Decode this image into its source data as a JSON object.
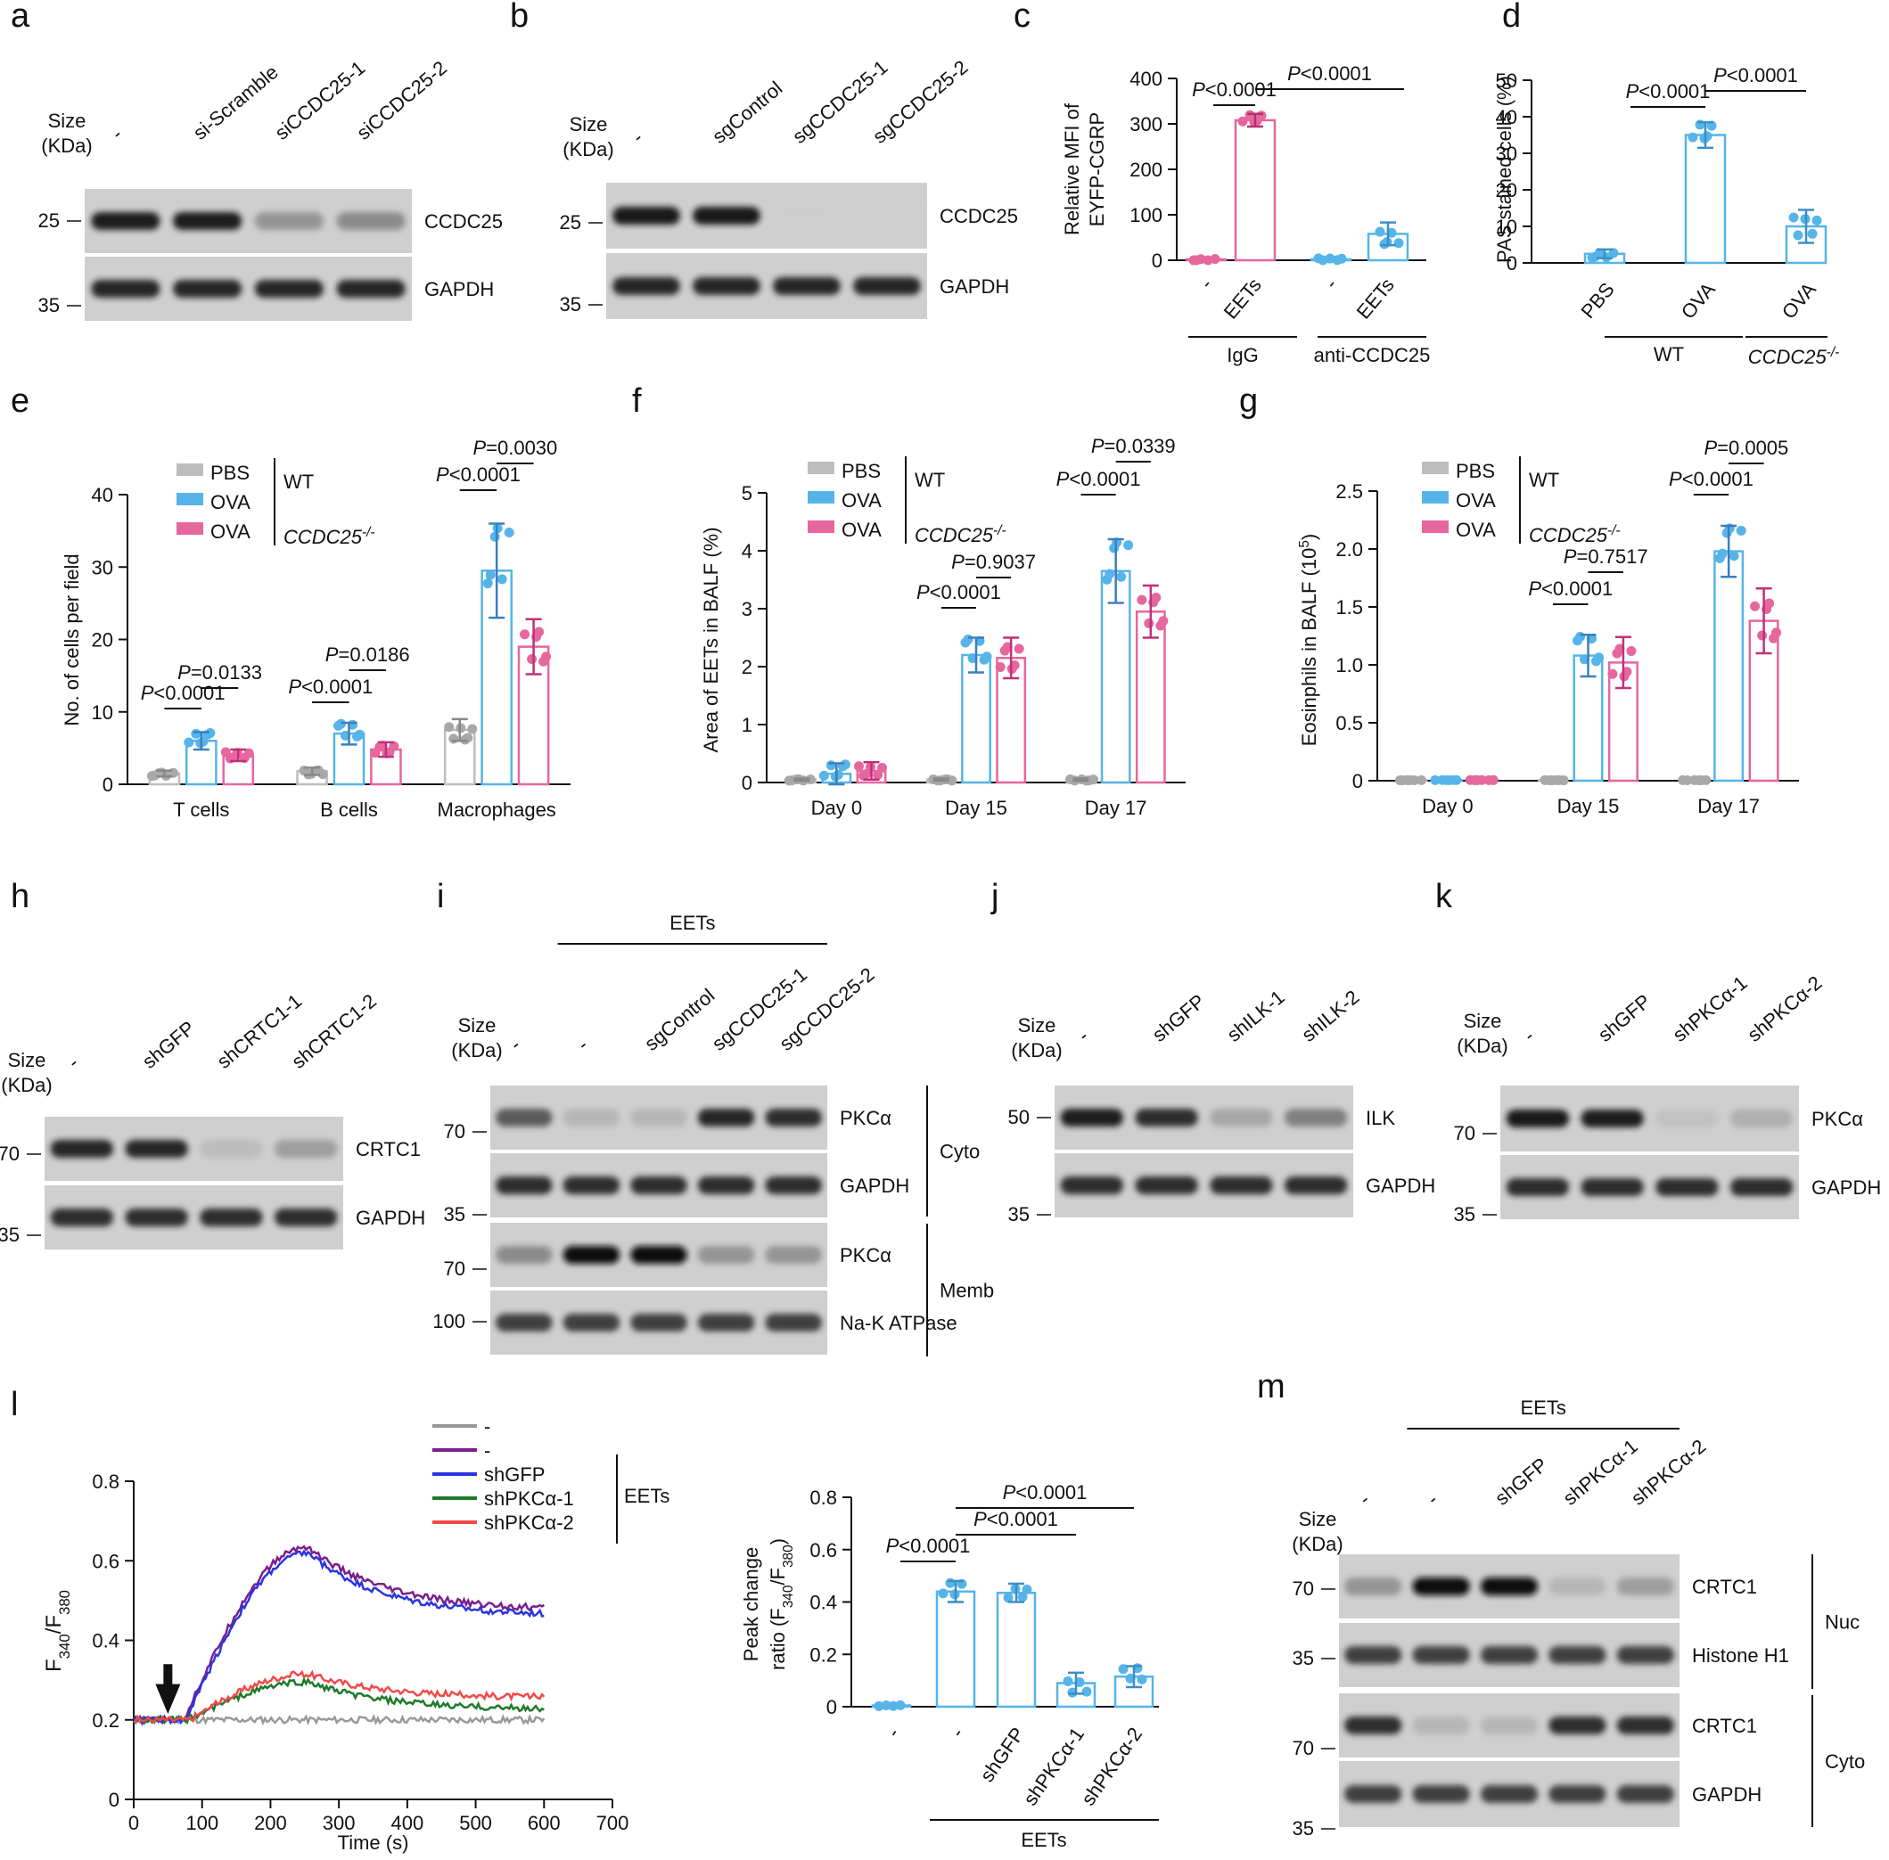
{
  "panel_letters": [
    "a",
    "b",
    "c",
    "d",
    "e",
    "f",
    "g",
    "h",
    "i",
    "j",
    "k",
    "l",
    "m"
  ],
  "blots": {
    "a": {
      "lanes": [
        "-",
        "si-Scramble",
        "siCCDC25-1",
        "siCCDC25-2"
      ],
      "size_title": [
        "Size",
        "(KDa)"
      ],
      "markers": [
        "25",
        "35"
      ],
      "bands": [
        "CCDC25",
        "GAPDH"
      ],
      "intensity": [
        [
          0.95,
          0.95,
          0.5,
          0.55
        ],
        [
          0.92,
          0.92,
          0.92,
          0.92
        ]
      ]
    },
    "b": {
      "lanes": [
        "-",
        "sgControl",
        "sgCCDC25-1",
        "sgCCDC25-2"
      ],
      "size_title": [
        "Size",
        "(KDa)"
      ],
      "markers": [
        "25",
        "35"
      ],
      "bands": [
        "CCDC25",
        "GAPDH"
      ],
      "intensity": [
        [
          0.98,
          0.98,
          0.06,
          0.05
        ],
        [
          0.92,
          0.92,
          0.92,
          0.92
        ]
      ]
    },
    "h": {
      "lanes": [
        "-",
        "shGFP",
        "shCRTC1-1",
        "shCRTC1-2"
      ],
      "size_title": [
        "Size",
        "(KDa)"
      ],
      "markers": [
        "70",
        "35"
      ],
      "bands": [
        "CRTC1",
        "GAPDH"
      ],
      "intensity": [
        [
          0.92,
          0.92,
          0.25,
          0.45
        ],
        [
          0.9,
          0.9,
          0.9,
          0.9
        ]
      ]
    },
    "i": {
      "group": "EETs",
      "lanes": [
        "-",
        "-",
        "sgControl",
        "sgCCDC25-1",
        "sgCCDC25-2"
      ],
      "size_title": [
        "Size",
        "(KDa)"
      ],
      "markers": [
        "70",
        "35",
        "70",
        "100"
      ],
      "bands": [
        "PKCα",
        "GAPDH",
        "PKCα",
        "Na-K ATPase"
      ],
      "fractions": [
        "Cyto",
        "Memb"
      ],
      "intensity": [
        [
          0.75,
          0.3,
          0.3,
          0.92,
          0.9
        ],
        [
          0.9,
          0.9,
          0.9,
          0.9,
          0.9
        ],
        [
          0.55,
          1.0,
          1.0,
          0.5,
          0.5
        ],
        [
          0.85,
          0.85,
          0.85,
          0.85,
          0.85
        ]
      ]
    },
    "j": {
      "lanes": [
        "-",
        "shGFP",
        "shILK-1",
        "shILK-2"
      ],
      "size_title": [
        "Size",
        "(KDa)"
      ],
      "markers": [
        "50",
        "35"
      ],
      "bands": [
        "ILK",
        "GAPDH"
      ],
      "intensity": [
        [
          0.95,
          0.9,
          0.4,
          0.6
        ],
        [
          0.9,
          0.9,
          0.9,
          0.9
        ]
      ]
    },
    "k": {
      "lanes": [
        "-",
        "shGFP",
        "shPKCα-1",
        "shPKCα-2"
      ],
      "size_title": [
        "Size",
        "(KDa)"
      ],
      "markers": [
        "70",
        "35"
      ],
      "bands": [
        "PKCα",
        "GAPDH"
      ],
      "intensity": [
        [
          0.98,
          0.95,
          0.2,
          0.35
        ],
        [
          0.9,
          0.9,
          0.9,
          0.9
        ]
      ]
    },
    "m": {
      "group": "EETs",
      "lanes": [
        "-",
        "-",
        "shGFP",
        "shPKCα-1",
        "shPKCα-2"
      ],
      "size_title": [
        "Size",
        "(KDa)"
      ],
      "markers": [
        "70",
        "35",
        "70",
        "35"
      ],
      "bands": [
        "CRTC1",
        "Histone H1",
        "CRTC1",
        "GAPDH"
      ],
      "fractions": [
        "Nuc",
        "Cyto"
      ],
      "intensity": [
        [
          0.5,
          1.0,
          1.0,
          0.3,
          0.45
        ],
        [
          0.85,
          0.85,
          0.85,
          0.85,
          0.85
        ],
        [
          0.9,
          0.3,
          0.3,
          0.9,
          0.9
        ],
        [
          0.85,
          0.85,
          0.85,
          0.85,
          0.85
        ]
      ]
    }
  },
  "chart_data": [
    {
      "id": "c",
      "type": "bar",
      "ylabel": "Relative MFI of EYFP-CGRP",
      "ylim": [
        0,
        400
      ],
      "yticks": [
        0,
        100,
        200,
        300,
        400
      ],
      "categories": [
        "-",
        "EETs",
        "-",
        "EETs"
      ],
      "groups": [
        "IgG",
        "anti-CCDC25"
      ],
      "values": [
        2,
        308,
        2,
        58
      ],
      "errors": [
        0,
        14,
        0,
        25
      ],
      "colors": [
        "#e6669e",
        "#e6669e",
        "#56b4e9",
        "#56b4e9"
      ],
      "annotations": [
        "P<0.0001",
        "P<0.0001"
      ]
    },
    {
      "id": "d",
      "type": "bar",
      "ylabel": "PAS stained cells (%)",
      "ylim": [
        0,
        50
      ],
      "yticks": [
        0,
        10,
        20,
        30,
        40,
        50
      ],
      "categories": [
        "PBS",
        "OVA",
        "OVA"
      ],
      "groups": [
        "WT",
        "CCDC25-/-"
      ],
      "values": [
        2.5,
        35,
        10
      ],
      "errors": [
        1.2,
        3.5,
        4.5
      ],
      "colors": [
        "#56b4e9",
        "#56b4e9",
        "#56b4e9"
      ],
      "annotations": [
        "P<0.0001",
        "P<0.0001"
      ]
    },
    {
      "id": "e",
      "type": "bar",
      "ylabel": "No. of cells per field",
      "ylim": [
        0,
        40
      ],
      "yticks": [
        0,
        10,
        20,
        30,
        40
      ],
      "categories": [
        "T cells",
        "B cells",
        "Macrophages"
      ],
      "legend": {
        "series": [
          "PBS",
          "OVA",
          "OVA"
        ],
        "genotypes": [
          "WT",
          "CCDC25-/-"
        ]
      },
      "series": [
        {
          "name": "PBS",
          "values": [
            1.5,
            1.8,
            7.5
          ],
          "errors": [
            0.4,
            0.5,
            1.5
          ]
        },
        {
          "name": "OVA",
          "values": [
            6,
            7,
            29.5
          ],
          "errors": [
            1.2,
            1.5,
            6.5
          ]
        },
        {
          "name": "OVA CCDC25-/-",
          "values": [
            4,
            4.8,
            19
          ],
          "errors": [
            0.8,
            1,
            3.8
          ]
        }
      ],
      "annotations": [
        "P<0.0001",
        "P=0.0133",
        "P<0.0001",
        "P=0.0186",
        "P<0.0001",
        "P=0.0030"
      ]
    },
    {
      "id": "f",
      "type": "bar",
      "ylabel": "Area of EETs in BALF (%)",
      "ylim": [
        0,
        5
      ],
      "yticks": [
        0,
        1,
        2,
        3,
        4,
        5
      ],
      "categories": [
        "Day 0",
        "Day 15",
        "Day 17"
      ],
      "legend": {
        "series": [
          "PBS",
          "OVA",
          "OVA"
        ],
        "genotypes": [
          "WT",
          "CCDC25-/-"
        ]
      },
      "series": [
        {
          "name": "PBS",
          "values": [
            0.05,
            0.05,
            0.05
          ],
          "errors": [
            0.02,
            0.02,
            0.02
          ]
        },
        {
          "name": "OVA",
          "values": [
            0.15,
            2.2,
            3.65
          ],
          "errors": [
            0.18,
            0.3,
            0.55
          ]
        },
        {
          "name": "OVA CCDC25-/-",
          "values": [
            0.2,
            2.15,
            2.95
          ],
          "errors": [
            0.15,
            0.35,
            0.45
          ]
        }
      ],
      "annotations": [
        "P<0.0001",
        "P=0.9037",
        "P<0.0001",
        "P=0.0339"
      ]
    },
    {
      "id": "g",
      "type": "bar",
      "ylabel": "Eosinphils in BALF (10^5)",
      "ylim": [
        0,
        2.5
      ],
      "yticks": [
        "0",
        "0.5",
        "1.0",
        "1.5",
        "2.0",
        "2.5"
      ],
      "categories": [
        "Day 0",
        "Day 15",
        "Day 17"
      ],
      "legend": {
        "series": [
          "PBS",
          "OVA",
          "OVA"
        ],
        "genotypes": [
          "WT",
          "CCDC25-/-"
        ]
      },
      "series": [
        {
          "name": "PBS",
          "values": [
            0.005,
            0.005,
            0.005
          ],
          "errors": [
            0,
            0,
            0
          ]
        },
        {
          "name": "OVA",
          "values": [
            0.005,
            1.08,
            1.98
          ],
          "errors": [
            0,
            0.18,
            0.22
          ]
        },
        {
          "name": "OVA CCDC25-/-",
          "values": [
            0.005,
            1.02,
            1.38
          ],
          "errors": [
            0,
            0.22,
            0.28
          ]
        }
      ],
      "annotations": [
        "P<0.0001",
        "P=0.7517",
        "P<0.0001",
        "P=0.0005"
      ]
    },
    {
      "id": "l1",
      "type": "line",
      "xlabel": "Time (s)",
      "ylabel": "F340/F380",
      "xlim": [
        0,
        700
      ],
      "ylim": [
        0,
        0.8
      ],
      "xticks": [
        0,
        100,
        200,
        300,
        400,
        500,
        600,
        700
      ],
      "yticks": [
        "0",
        "0.2",
        "0.4",
        "0.6",
        "0.8"
      ],
      "legend": [
        "-",
        "-",
        "shGFP",
        "shPKCα-1",
        "shPKCα-2"
      ],
      "legend_group": "EETs",
      "arrow_time": 50,
      "series": [
        {
          "name": "-",
          "color": "#999999",
          "plateau": 0.2,
          "peak": 0.2,
          "end": 0.2
        },
        {
          "name": "-",
          "color": "#7a1f8c",
          "plateau": 0.2,
          "peak": 0.635,
          "end": 0.475
        },
        {
          "name": "shGFP",
          "color": "#2b35e0",
          "plateau": 0.2,
          "peak": 0.62,
          "end": 0.46
        },
        {
          "name": "shPKCα-1",
          "color": "#1f7a2a",
          "plateau": 0.2,
          "peak": 0.295,
          "end": 0.225
        },
        {
          "name": "shPKCα-2",
          "color": "#f04a4a",
          "plateau": 0.2,
          "peak": 0.315,
          "end": 0.255
        }
      ]
    },
    {
      "id": "l2",
      "type": "bar",
      "ylabel": "Peak change ratio (F340/F380)",
      "ylim": [
        0,
        0.8
      ],
      "yticks": [
        "0",
        "0.2",
        "0.4",
        "0.6",
        "0.8"
      ],
      "categories": [
        "-",
        "-",
        "shGFP",
        "shPKCα-1",
        "shPKCα-2"
      ],
      "group": "EETs",
      "values": [
        0.005,
        0.44,
        0.435,
        0.09,
        0.115
      ],
      "errors": [
        0,
        0.04,
        0.035,
        0.04,
        0.04
      ],
      "annotations": [
        "P<0.0001",
        "P<0.0001",
        "P<0.0001"
      ]
    }
  ],
  "axis_texts": {
    "c_ylabel": [
      "Relative MFI of",
      "EYFP-CGRP"
    ],
    "l_ylabel_main": "F",
    "l_ylabel_sub1": "340",
    "l_ylabel_sep": "/F",
    "l_ylabel_sub2": "380",
    "l2_ylabel_top": "Peak change",
    "l2_ylabel_pre": "ratio (F",
    "l2_sub1": "340",
    "l2_sep": "/F",
    "l2_sub2": "380",
    "l2_close": ")",
    "g_ylabel_pre": "Eosinphils in BALF (10",
    "g_ylabel_sup": "5",
    "g_ylabel_close": ")",
    "ko_base": "CCDC25",
    "ko_sup": "-/-"
  }
}
